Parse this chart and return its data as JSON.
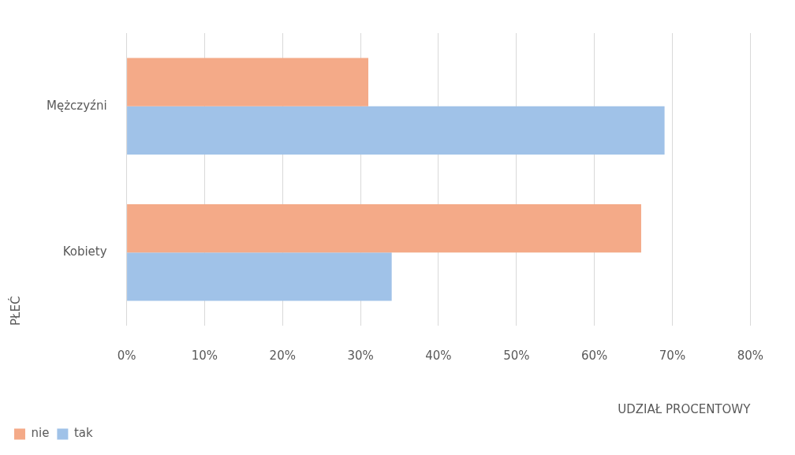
{
  "chart_data": {
    "type": "bar",
    "orientation": "horizontal",
    "xlabel": "UDZIAŁ PROCENTOWY",
    "ylabel": "PŁEĆ",
    "categories": [
      "Mężczyźni",
      "Kobiety"
    ],
    "series": [
      {
        "name": "nie",
        "color": "#f4aa88",
        "values": [
          31,
          66
        ]
      },
      {
        "name": "tak",
        "color": "#a0c2e8",
        "values": [
          69,
          34
        ]
      }
    ],
    "xlim": [
      0,
      80
    ],
    "xticks": [
      {
        "value": 0,
        "label": "0%"
      },
      {
        "value": 10,
        "label": "10%"
      },
      {
        "value": 20,
        "label": "20%"
      },
      {
        "value": 30,
        "label": "30%"
      },
      {
        "value": 40,
        "label": "40%"
      },
      {
        "value": 50,
        "label": "50%"
      },
      {
        "value": 60,
        "label": "60%"
      },
      {
        "value": 70,
        "label": "70%"
      },
      {
        "value": 80,
        "label": "80%"
      }
    ],
    "grid": "x",
    "legend": "bottom left"
  }
}
